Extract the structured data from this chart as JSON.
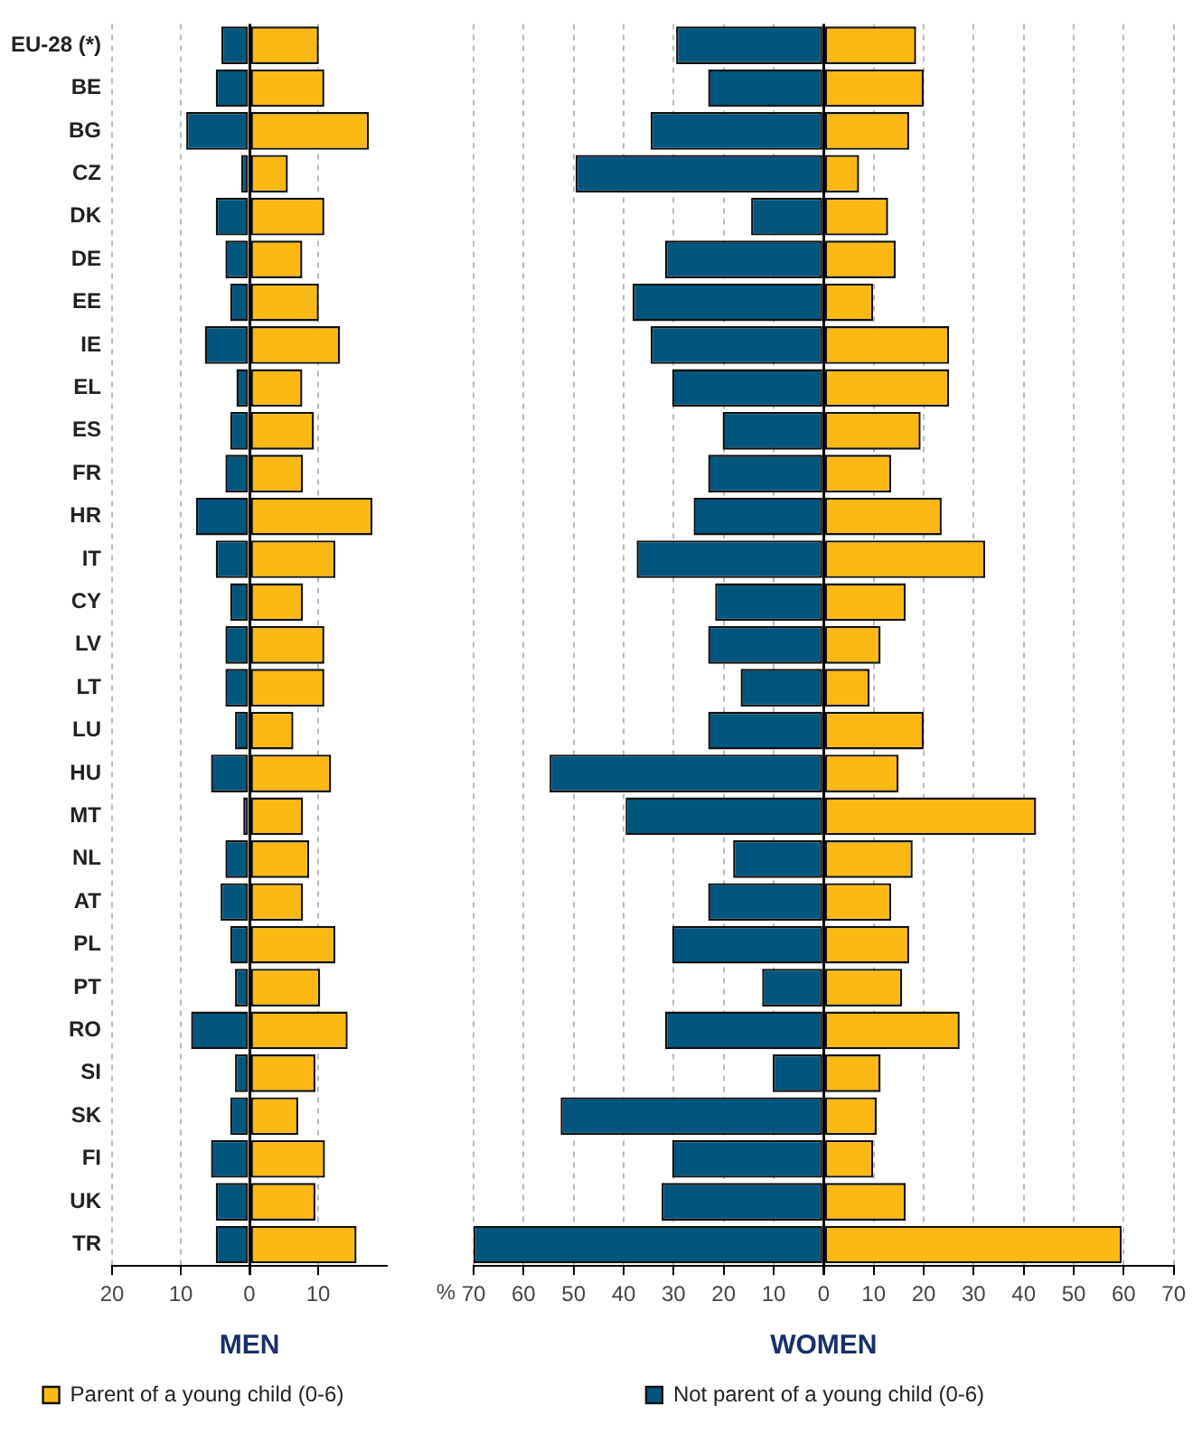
{
  "chart_data": [
    {
      "type": "bar",
      "orientation": "horizontal",
      "stacked": true,
      "xlabel": "MEN",
      "grid": "x",
      "legend": "bottom",
      "categories": [
        "EU-28 (*)",
        "BE",
        "BG",
        "CZ",
        "DK",
        "DE",
        "EE",
        "IE",
        "EL",
        "ES",
        "FR",
        "HR",
        "IT",
        "CY",
        "LV",
        "LT",
        "LU",
        "HU",
        "MT",
        "NL",
        "AT",
        "PL",
        "PT",
        "RO",
        "SI",
        "SK",
        "FI",
        "UK",
        "TR"
      ],
      "xlim": [
        -20,
        20
      ],
      "xticks": [
        {
          "value": -20,
          "label": "20"
        },
        {
          "value": -10,
          "label": "10"
        },
        0,
        10
      ],
      "series": [
        {
          "color": "#00567f",
          "values": [
            -4.1,
            -4.9,
            -9.2,
            -1.2,
            -4.9,
            -3.5,
            -2.8,
            -6.5,
            -1.9,
            -2.8,
            -3.5,
            -7.8,
            -4.9,
            -2.8,
            -3.5,
            -3.5,
            -2.1,
            -5.6,
            -0.9,
            -3.5,
            -4.2,
            -2.8,
            -2.1,
            -8.5,
            -2.1,
            -2.8,
            -5.6,
            -4.9,
            -4.9
          ]
        },
        {
          "name": "Parent of a young child (0-6)",
          "color": "#fdb913",
          "values": [
            10.1,
            10.9,
            17.4,
            5.6,
            10.9,
            7.7,
            10.1,
            13.2,
            7.7,
            9.4,
            7.8,
            17.9,
            12.5,
            7.8,
            10.9,
            10.9,
            6.4,
            11.9,
            7.8,
            8.7,
            7.8,
            12.5,
            10.3,
            14.3,
            9.6,
            7.1,
            11,
            9.6,
            15.6
          ]
        }
      ]
    },
    {
      "type": "bar",
      "orientation": "horizontal",
      "stacked": true,
      "xlabel": "WOMEN",
      "grid": "x",
      "legend": "bottom",
      "annotations": [
        "%"
      ],
      "categories": [
        null,
        null,
        null,
        null,
        null,
        null,
        null,
        null,
        null,
        null,
        null,
        null,
        null,
        null,
        null,
        null,
        null,
        null,
        null,
        null,
        null,
        null,
        null,
        null,
        null,
        null,
        null,
        null,
        null
      ],
      "xlim": [
        -70,
        70
      ],
      "xticks": [
        {
          "value": -70,
          "label": "70"
        },
        {
          "value": -60,
          "label": "60"
        },
        {
          "value": -50,
          "label": "50"
        },
        {
          "value": -40,
          "label": "40"
        },
        {
          "value": -30,
          "label": "30"
        },
        {
          "value": -20,
          "label": "20"
        },
        {
          "value": -10,
          "label": "10"
        },
        0,
        10,
        20,
        30,
        40,
        50,
        60,
        70
      ],
      "series": [
        {
          "name": "Not parent of a young child (0-6)",
          "color": "#00567f",
          "values": [
            -29.5,
            -23.1,
            -34.6,
            -49.6,
            -14.5,
            -31.7,
            -38.2,
            -34.6,
            -30.3,
            -20.2,
            -23.1,
            -26,
            -37.4,
            -21.7,
            -23.1,
            -16.6,
            -23.1,
            -54.8,
            -39.6,
            -18.1,
            -23.1,
            -30.3,
            -12.3,
            -31.7,
            -10.2,
            -52.6,
            -30.3,
            -32.4,
            -70
          ]
        },
        {
          "color": "#fdb913",
          "values": [
            18.5,
            20,
            17.1,
            7.1,
            12.9,
            14.4,
            9.9,
            25.1,
            25.1,
            19.4,
            13.5,
            23.6,
            32.3,
            16.4,
            11.4,
            9.2,
            20,
            15,
            42.5,
            17.8,
            13.5,
            17.1,
            15.7,
            27.2,
            11.4,
            10.6,
            9.9,
            16.4,
            59.6
          ]
        }
      ]
    }
  ]
}
